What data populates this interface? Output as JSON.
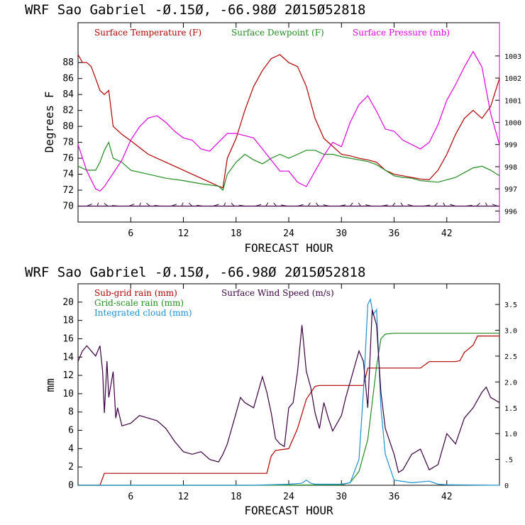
{
  "chart_data": [
    {
      "type": "line",
      "title": "WRF   Sao Gabriel    -0.150, -66.980   2015052818",
      "xlabel": "FORECAST HOUR",
      "ylabel": "Degrees F",
      "xlim": [
        0,
        48
      ],
      "ylim": [
        68,
        93
      ],
      "y2lim": [
        995.5,
        1004.5
      ],
      "xticks": [
        6,
        12,
        18,
        24,
        30,
        36,
        42
      ],
      "yticks": [
        70,
        72,
        74,
        76,
        78,
        80,
        82,
        84,
        86,
        88
      ],
      "y2ticks": [
        996,
        997,
        998,
        999,
        1000,
        1001,
        1002,
        1003
      ],
      "colors": {
        "temperature": "#b00000",
        "dewpoint": "#228b22",
        "pressure": "#e000e0",
        "wind": "#3a0040"
      },
      "series": [
        {
          "name": "Surface Temperature (F)",
          "axis": "left",
          "x": [
            0,
            0.5,
            1,
            1.5,
            2,
            2.5,
            3,
            3.5,
            4,
            5,
            6,
            8,
            10,
            12,
            14,
            16,
            16.5,
            17,
            18,
            19,
            20,
            21,
            22,
            23,
            24,
            25,
            26,
            27,
            28,
            29,
            30,
            31,
            32,
            33,
            34,
            35,
            36,
            37,
            38,
            39,
            40,
            41,
            42,
            43,
            44,
            45,
            46,
            47,
            48
          ],
          "values": [
            89,
            88,
            88,
            87.5,
            86,
            84.5,
            84,
            84.5,
            80,
            79,
            78.2,
            76.5,
            75.5,
            74.5,
            73.5,
            72.5,
            72.3,
            76,
            78.5,
            82,
            85,
            87,
            88.5,
            89,
            88,
            87.5,
            85,
            81,
            78.5,
            77.5,
            76.5,
            76.3,
            76,
            75.8,
            75.5,
            74.5,
            74,
            73.8,
            73.6,
            73.4,
            73.3,
            74.5,
            76.5,
            79,
            81,
            82,
            81,
            82.5,
            86
          ]
        },
        {
          "name": "Surface Dewpoint (F)",
          "axis": "left",
          "x": [
            0,
            1,
            2,
            2.5,
            3,
            3.5,
            4,
            5,
            6,
            8,
            10,
            12,
            14,
            16,
            16.5,
            17,
            18,
            19,
            20,
            21,
            22,
            23,
            24,
            25,
            26,
            27,
            28,
            29,
            30,
            31,
            32,
            33,
            34,
            35,
            36,
            37,
            38,
            39,
            40,
            41,
            42,
            43,
            44,
            45,
            46,
            47,
            48
          ],
          "values": [
            75,
            74.5,
            74.5,
            75.5,
            77,
            78,
            76,
            75.5,
            74.5,
            74,
            73.5,
            73.2,
            72.8,
            72.5,
            72,
            74,
            75.5,
            76.5,
            75.8,
            75.3,
            76,
            76.5,
            76,
            76.5,
            77,
            77,
            76.5,
            76.5,
            76.2,
            76,
            75.8,
            75.6,
            75.2,
            74.5,
            73.8,
            73.6,
            73.5,
            73.2,
            73.1,
            73,
            73.3,
            73.6,
            74.2,
            74.8,
            75,
            74.5,
            73.8
          ]
        },
        {
          "name": "Surface Pressure (mb)",
          "axis": "right",
          "x": [
            0,
            1,
            2,
            2.5,
            3,
            4,
            5,
            6,
            7,
            8,
            9,
            10,
            11,
            12,
            13,
            14,
            15,
            16,
            17,
            18,
            19,
            20,
            21,
            22,
            23,
            24,
            25,
            26,
            27,
            28,
            29,
            30,
            31,
            32,
            33,
            34,
            35,
            36,
            37,
            38,
            39,
            40,
            41,
            42,
            43,
            44,
            45,
            46,
            47,
            48
          ],
          "values": [
            999,
            997.8,
            997,
            996.9,
            997.1,
            997.7,
            998.3,
            999.2,
            999.8,
            1000.2,
            1000.3,
            1000,
            999.6,
            999.3,
            999.2,
            998.8,
            998.7,
            999.1,
            999.5,
            999.5,
            999.4,
            999.3,
            998.8,
            998.3,
            997.8,
            997.8,
            997.3,
            997.1,
            997.8,
            998.5,
            999.1,
            998.9,
            1000,
            1000.8,
            1001.2,
            1000.5,
            999.7,
            999.6,
            999.2,
            999,
            998.8,
            999.1,
            999.9,
            1001,
            1001.7,
            1002.5,
            1003.2,
            1002.5,
            1000.4,
            999
          ]
        },
        {
          "name": "Surface Wind",
          "axis": "left",
          "x": [
            0,
            48
          ],
          "values": [
            70,
            70
          ]
        }
      ],
      "legend": [
        "Surface Temperature (F)",
        "Surface Dewpoint (F)",
        "Surface Pressure (mb)"
      ]
    },
    {
      "type": "line",
      "title": "WRF   Sao Gabriel    -0.150, -66.980   2015052818",
      "xlabel": "FORECAST HOUR",
      "ylabel": "mm",
      "xlim": [
        0,
        48
      ],
      "ylim": [
        0,
        22
      ],
      "y2lim": [
        0,
        3.9
      ],
      "xticks": [
        6,
        12,
        18,
        24,
        30,
        36,
        42
      ],
      "yticks": [
        0,
        2,
        4,
        6,
        8,
        10,
        12,
        14,
        16,
        18,
        20
      ],
      "y2ticks": [
        0,
        0.5,
        1.0,
        1.5,
        2.0,
        2.5,
        3.0,
        3.5
      ],
      "y2ticklabels": [
        "0",
        ".5",
        "1.0",
        "1.5",
        "2.0",
        "2.5",
        "3.0",
        "3.5"
      ],
      "colors": {
        "subgrid": "#b00000",
        "gridscale": "#228b22",
        "cloud": "#1e90d0",
        "wind": "#3a0040"
      },
      "series": [
        {
          "name": "Sub-grid rain (mm)",
          "axis": "left",
          "x": [
            0,
            2.5,
            3,
            21.5,
            22,
            22.5,
            24,
            25,
            26,
            27,
            27.5,
            32.5,
            33,
            37,
            39,
            40,
            43,
            43.5,
            44,
            45,
            45.5,
            48
          ],
          "values": [
            0,
            0,
            1.3,
            1.3,
            3.2,
            3.8,
            4,
            6.2,
            9.4,
            10.8,
            10.9,
            10.9,
            12.8,
            12.8,
            12.8,
            13.5,
            13.5,
            13.6,
            14.5,
            15.3,
            16.3,
            16.3
          ]
        },
        {
          "name": "Grid-scale rain (mm)",
          "axis": "left",
          "x": [
            0,
            20,
            30,
            31,
            32,
            33,
            33.5,
            34,
            34.5,
            35,
            36,
            48
          ],
          "values": [
            0,
            0,
            0.05,
            0.3,
            1.5,
            5,
            9,
            13,
            16,
            16.5,
            16.6,
            16.6
          ]
        },
        {
          "name": "Integrated cloud (mm)",
          "axis": "right",
          "x": [
            0,
            20,
            24,
            25.5,
            26,
            26.5,
            27,
            30,
            31,
            32,
            32.5,
            33,
            33.3,
            33.6,
            34,
            34.5,
            35,
            36,
            38,
            40,
            41,
            42,
            48
          ],
          "values": [
            0,
            0,
            0.02,
            0.04,
            0.1,
            0.04,
            0.02,
            0.02,
            0.05,
            0.5,
            1.8,
            3.5,
            3.6,
            3.3,
            3.4,
            1.5,
            0.6,
            0.1,
            0.05,
            0.08,
            0.02,
            0.01,
            0
          ]
        },
        {
          "name": "Surface Wind Speed (m/s)",
          "axis": "right",
          "x": [
            0,
            0.5,
            1,
            1.5,
            2,
            2.5,
            2.8,
            3,
            3.3,
            3.5,
            4,
            4.3,
            4.5,
            5,
            6,
            7,
            8,
            9,
            10,
            11,
            12,
            13,
            14,
            15,
            16,
            16.5,
            17,
            18,
            18.5,
            19,
            20,
            21,
            21.5,
            22,
            22.5,
            23,
            23.5,
            24,
            24.5,
            25,
            25.5,
            26,
            26.5,
            27,
            27.5,
            28,
            28.5,
            29,
            30,
            30.5,
            31,
            31.5,
            32,
            32.5,
            33,
            33.5,
            34,
            34.5,
            35,
            36,
            36.5,
            37,
            38,
            39,
            40,
            41,
            42,
            43,
            44,
            45,
            46,
            46.5,
            47,
            48
          ],
          "values": [
            2.4,
            2.6,
            2.7,
            2.6,
            2.5,
            2.7,
            2.2,
            1.4,
            2.4,
            1.7,
            2.2,
            1.3,
            1.5,
            1.15,
            1.2,
            1.35,
            1.3,
            1.25,
            1.1,
            0.85,
            0.65,
            0.6,
            0.65,
            0.5,
            0.45,
            0.6,
            0.8,
            1.4,
            1.7,
            1.6,
            1.5,
            2.1,
            1.8,
            1.4,
            0.9,
            0.8,
            0.75,
            1.5,
            1.6,
            2.2,
            3.1,
            2.2,
            1.9,
            1.4,
            1.1,
            1.6,
            1.3,
            1.05,
            1.35,
            1.7,
            2.0,
            2.3,
            2.6,
            2.4,
            1.5,
            3.4,
            3.1,
            1.8,
            1.1,
            0.6,
            0.25,
            0.3,
            0.6,
            0.7,
            0.3,
            0.4,
            1.0,
            0.8,
            1.3,
            1.5,
            1.8,
            1.9,
            1.7,
            1.6
          ]
        }
      ],
      "legend": [
        "Sub-grid rain (mm)",
        "Surface Wind Speed (m/s)",
        "Grid-scale rain (mm)",
        "Integrated cloud (mm)"
      ]
    }
  ]
}
